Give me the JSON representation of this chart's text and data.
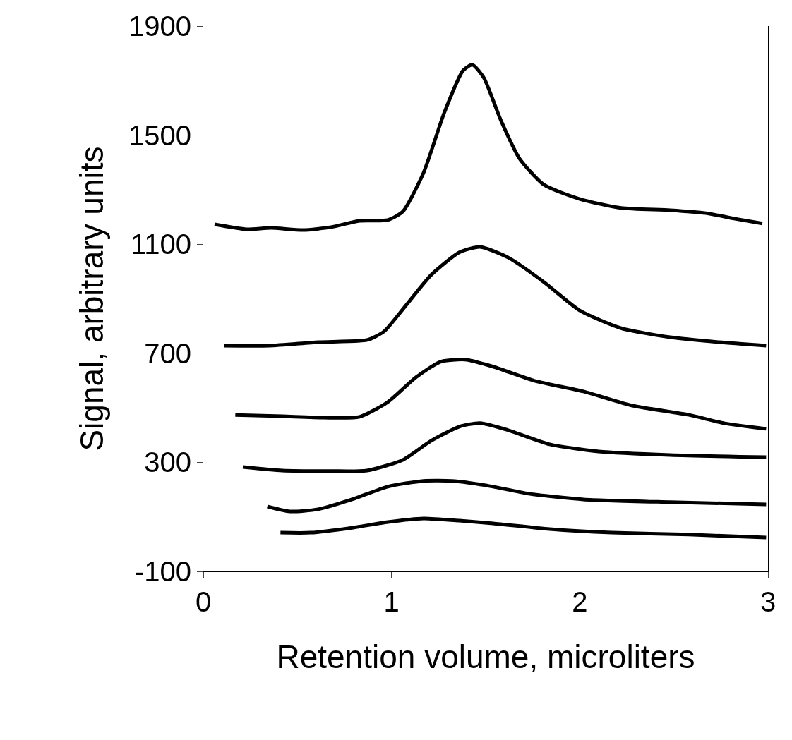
{
  "chart_data": {
    "type": "line",
    "xlabel": "Retention volume, microliters",
    "ylabel": "Signal, arbitrary units",
    "xlim": [
      0,
      3
    ],
    "xticks": [
      0,
      1,
      2,
      3
    ],
    "ylim": [
      -100,
      1900
    ],
    "yticks": [
      -100,
      300,
      700,
      1100,
      1500,
      1900
    ],
    "marker": "none",
    "line_style": "solid",
    "series": [
      {
        "color": "#000000",
        "x": [
          0.06,
          0.23,
          0.36,
          0.53,
          0.68,
          0.83,
          0.98,
          1.06,
          1.17,
          1.28,
          1.38,
          1.43,
          1.49,
          1.58,
          1.68,
          1.81,
          2.0,
          2.22,
          2.48,
          2.67,
          2.82,
          2.97
        ],
        "values": [
          1173,
          1155,
          1160,
          1152,
          1163,
          1186,
          1189,
          1220,
          1362,
          1582,
          1737,
          1758,
          1711,
          1556,
          1414,
          1318,
          1266,
          1233,
          1225,
          1214,
          1194,
          1176
        ]
      },
      {
        "color": "#000000",
        "x": [
          0.11,
          0.35,
          0.61,
          0.87,
          0.96,
          1.07,
          1.21,
          1.36,
          1.47,
          1.62,
          1.81,
          2.0,
          2.22,
          2.48,
          2.74,
          2.99
        ],
        "values": [
          728,
          728,
          741,
          749,
          780,
          870,
          987,
          1070,
          1090,
          1051,
          961,
          857,
          792,
          759,
          741,
          728
        ]
      },
      {
        "color": "#000000",
        "x": [
          0.17,
          0.42,
          0.64,
          0.83,
          0.98,
          1.13,
          1.26,
          1.39,
          1.54,
          1.76,
          2.02,
          2.28,
          2.58,
          2.77,
          2.99
        ],
        "values": [
          474,
          469,
          464,
          467,
          521,
          612,
          669,
          677,
          651,
          599,
          560,
          508,
          474,
          443,
          423
        ]
      },
      {
        "color": "#000000",
        "x": [
          0.21,
          0.42,
          0.68,
          0.87,
          1.06,
          1.21,
          1.36,
          1.47,
          1.62,
          1.84,
          2.1,
          2.48,
          2.99
        ],
        "values": [
          283,
          270,
          268,
          270,
          309,
          379,
          431,
          444,
          418,
          366,
          340,
          327,
          319
        ]
      },
      {
        "color": "#000000",
        "x": [
          0.34,
          0.46,
          0.61,
          0.79,
          0.98,
          1.17,
          1.32,
          1.5,
          1.73,
          2.02,
          2.48,
          2.99
        ],
        "values": [
          138,
          120,
          128,
          164,
          211,
          232,
          232,
          216,
          185,
          164,
          154,
          146
        ]
      },
      {
        "color": "#000000",
        "x": [
          0.41,
          0.57,
          0.79,
          0.98,
          1.17,
          1.36,
          1.54,
          1.84,
          2.17,
          2.58,
          2.99
        ],
        "values": [
          42,
          42,
          60,
          81,
          94,
          86,
          76,
          55,
          42,
          35,
          24
        ]
      }
    ]
  }
}
